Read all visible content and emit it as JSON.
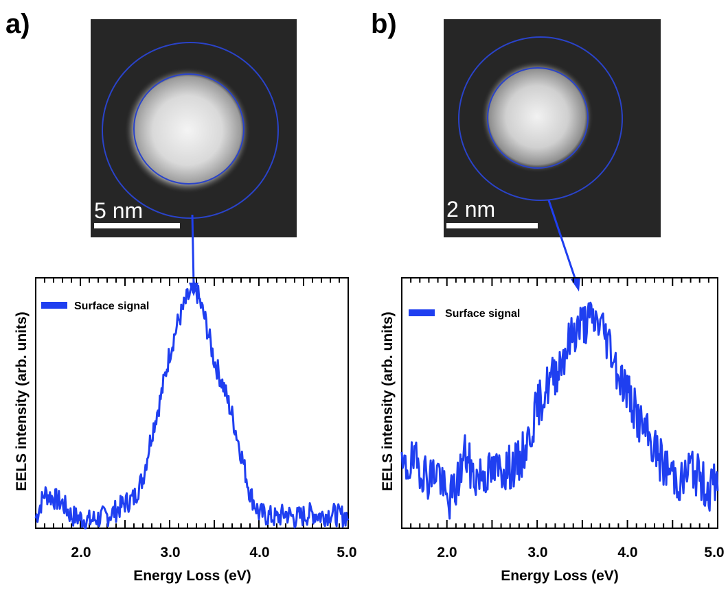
{
  "colors": {
    "series": "#1f3ff0",
    "ring": "#2a43c9",
    "axis": "#000000",
    "image_bg": "#262626"
  },
  "panels": [
    {
      "label": "a)",
      "scale_bar": "5 nm",
      "ylabel": "EELS intensity (arb. units)",
      "xlabel": "Energy Loss (eV)",
      "legend": "Surface signal",
      "xticks": [
        "2.0",
        "3.0",
        "4.0",
        "5.0"
      ]
    },
    {
      "label": "b)",
      "scale_bar": "2 nm",
      "ylabel": "EELS intensity (arb. units)",
      "xlabel": "Energy Loss (eV)",
      "legend": "Surface signal",
      "xticks": [
        "2.0",
        "3.0",
        "4.0",
        "5.0"
      ]
    }
  ],
  "chart_data": [
    {
      "type": "line",
      "xlabel": "Energy Loss (eV)",
      "ylabel": "EELS intensity (arb. units)",
      "xlim": [
        1.5,
        5.0
      ],
      "ylim": [
        0,
        1.0
      ],
      "xticks": [
        2.0,
        3.0,
        4.0,
        5.0
      ],
      "yticks_labeled": false,
      "legend": "top-left",
      "series": [
        {
          "name": "Surface signal",
          "color": "#1f3ff0",
          "x": [
            1.5,
            1.6,
            1.7,
            1.8,
            1.9,
            2.0,
            2.1,
            2.2,
            2.3,
            2.4,
            2.5,
            2.6,
            2.7,
            2.8,
            2.9,
            3.0,
            3.1,
            3.2,
            3.3,
            3.4,
            3.5,
            3.6,
            3.7,
            3.8,
            3.9,
            4.0,
            4.1,
            4.2,
            4.3,
            4.4,
            4.5,
            4.6,
            4.7,
            4.8,
            4.9,
            5.0
          ],
          "y": [
            0.04,
            0.14,
            0.12,
            0.1,
            0.05,
            0.04,
            0.03,
            0.04,
            0.05,
            0.07,
            0.1,
            0.12,
            0.2,
            0.38,
            0.52,
            0.7,
            0.83,
            0.92,
            0.95,
            0.83,
            0.67,
            0.57,
            0.45,
            0.3,
            0.14,
            0.06,
            0.05,
            0.04,
            0.06,
            0.04,
            0.05,
            0.06,
            0.05,
            0.06,
            0.05,
            0.05
          ]
        }
      ]
    },
    {
      "type": "line",
      "xlabel": "Energy Loss (eV)",
      "ylabel": "EELS intensity (arb. units)",
      "xlim": [
        1.5,
        5.0
      ],
      "ylim": [
        0,
        1.0
      ],
      "xticks": [
        2.0,
        3.0,
        4.0,
        5.0
      ],
      "yticks_labeled": false,
      "legend": "top-left",
      "series": [
        {
          "name": "Surface signal",
          "color": "#1f3ff0",
          "x": [
            1.5,
            1.6,
            1.7,
            1.8,
            1.9,
            2.0,
            2.1,
            2.2,
            2.3,
            2.4,
            2.5,
            2.6,
            2.7,
            2.8,
            2.9,
            3.0,
            3.1,
            3.2,
            3.3,
            3.4,
            3.5,
            3.6,
            3.7,
            3.8,
            3.9,
            4.0,
            4.1,
            4.2,
            4.3,
            4.4,
            4.5,
            4.6,
            4.7,
            4.8,
            4.9,
            5.0
          ],
          "y": [
            0.22,
            0.26,
            0.25,
            0.2,
            0.24,
            0.1,
            0.16,
            0.3,
            0.2,
            0.22,
            0.22,
            0.24,
            0.24,
            0.26,
            0.35,
            0.48,
            0.56,
            0.62,
            0.7,
            0.78,
            0.82,
            0.83,
            0.82,
            0.74,
            0.62,
            0.55,
            0.45,
            0.38,
            0.32,
            0.25,
            0.22,
            0.18,
            0.25,
            0.2,
            0.15,
            0.2
          ]
        }
      ]
    }
  ]
}
